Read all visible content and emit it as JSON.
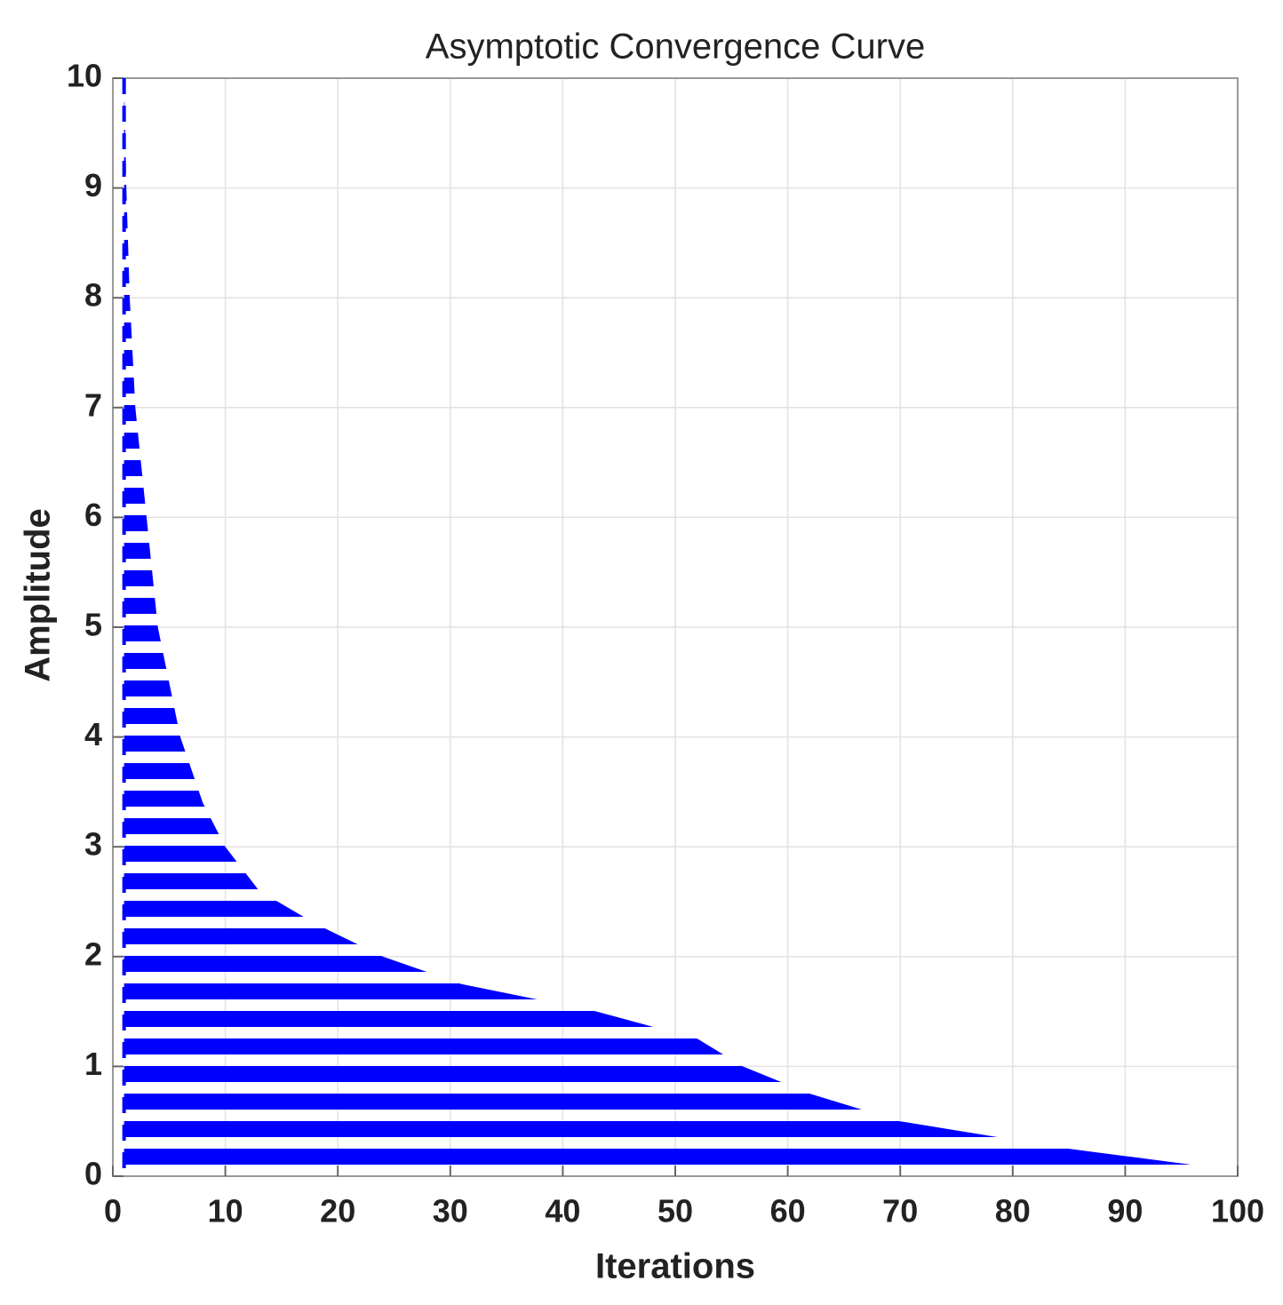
{
  "chart_data": {
    "type": "line",
    "title": "Asymptotic Convergence Curve",
    "x_label": "Iterations",
    "y_label": "Amplitude",
    "x": [
      1,
      1.2,
      1.5,
      2,
      3,
      4,
      6,
      8,
      10,
      13,
      18,
      24,
      31,
      43,
      52,
      56,
      62,
      70,
      85,
      100
    ],
    "series": [
      {
        "name": "Amplitude",
        "color": "#0000ff",
        "values": [
          10,
          9,
          8,
          7,
          6,
          5,
          4,
          3.4,
          3,
          2.6,
          2.3,
          2,
          1.75,
          1.5,
          1.25,
          1,
          0.75,
          0.5,
          0.25,
          0.05
        ]
      }
    ],
    "xlim": [
      0,
      100
    ],
    "ylim": [
      0,
      10
    ],
    "xticks": [
      0,
      10,
      20,
      30,
      40,
      50,
      60,
      70,
      80,
      90,
      100
    ],
    "yticks": [
      0,
      1,
      2,
      3,
      4,
      5,
      6,
      7,
      8,
      9,
      10
    ],
    "grid": true
  }
}
